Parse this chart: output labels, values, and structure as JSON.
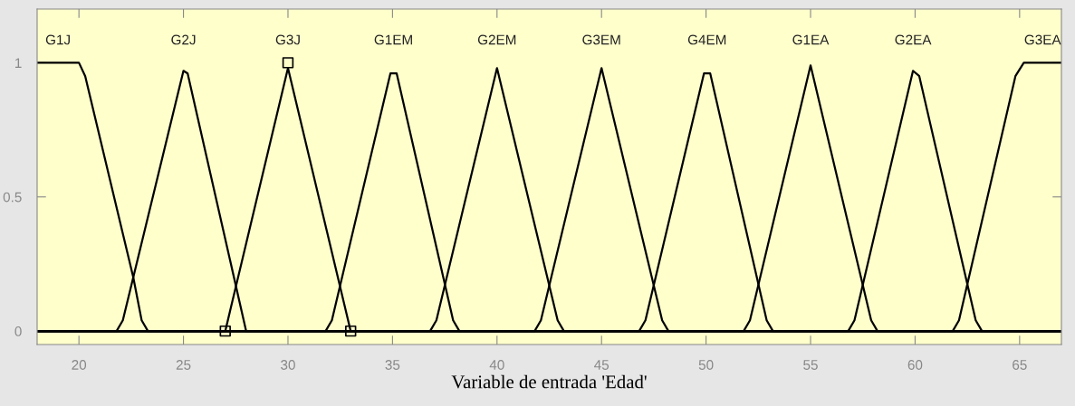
{
  "chart_data": {
    "type": "line",
    "xlabel": "Variable de entrada 'Edad'",
    "xlim": [
      18,
      67
    ],
    "ylim": [
      -0.05,
      1.2
    ],
    "xticks": [
      20,
      25,
      30,
      35,
      40,
      45,
      50,
      55,
      60,
      65
    ],
    "yticks": [
      0,
      0.5,
      1
    ],
    "grid": false,
    "legend": false,
    "line_style": "solid",
    "series": [
      {
        "name": "G1J",
        "color": "#000000",
        "x": [
          18,
          20,
          20.3,
          22.6,
          23,
          23.3,
          67
        ],
        "values": [
          1,
          1,
          0.95,
          0.2,
          0.04,
          0,
          0
        ]
      },
      {
        "name": "G2J",
        "color": "#000000",
        "x": [
          18,
          21.8,
          22.1,
          25,
          25.2,
          28,
          67
        ],
        "values": [
          0,
          0,
          0.04,
          0.97,
          0.96,
          0,
          0
        ]
      },
      {
        "name": "G3J",
        "color": "#000000",
        "x": [
          18,
          27,
          30,
          33,
          67
        ],
        "values": [
          0,
          0,
          0.98,
          0,
          0
        ]
      },
      {
        "name": "G1EM",
        "color": "#000000",
        "x": [
          18,
          31.8,
          32.1,
          34.9,
          35.2,
          37.9,
          38.2,
          67
        ],
        "values": [
          0,
          0,
          0.04,
          0.96,
          0.96,
          0.04,
          0,
          0
        ]
      },
      {
        "name": "G2EM",
        "color": "#000000",
        "x": [
          18,
          36.8,
          37.1,
          40,
          42.9,
          43.2,
          67
        ],
        "values": [
          0,
          0,
          0.04,
          0.98,
          0.04,
          0,
          0
        ]
      },
      {
        "name": "G3EM",
        "color": "#000000",
        "x": [
          18,
          41.8,
          42.1,
          45,
          47.9,
          48.2,
          67
        ],
        "values": [
          0,
          0,
          0.04,
          0.98,
          0.04,
          0,
          0
        ]
      },
      {
        "name": "G4EM",
        "color": "#000000",
        "x": [
          18,
          46.8,
          47.1,
          49.9,
          50.2,
          52.9,
          53.2,
          67
        ],
        "values": [
          0,
          0,
          0.04,
          0.96,
          0.96,
          0.04,
          0,
          0
        ]
      },
      {
        "name": "G1EA",
        "color": "#000000",
        "x": [
          18,
          51.8,
          52.1,
          55,
          57.9,
          58.2,
          67
        ],
        "values": [
          0,
          0,
          0.04,
          0.99,
          0.04,
          0,
          0
        ]
      },
      {
        "name": "G2EA",
        "color": "#000000",
        "x": [
          18,
          56.8,
          57.1,
          59.9,
          60.2,
          62.9,
          63.2,
          67
        ],
        "values": [
          0,
          0,
          0.04,
          0.97,
          0.95,
          0.04,
          0,
          0
        ]
      },
      {
        "name": "G3EA",
        "color": "#000000",
        "x": [
          18,
          61.8,
          62.1,
          64.8,
          65.2,
          67
        ],
        "values": [
          0,
          0,
          0.04,
          0.95,
          1,
          1
        ]
      },
      {
        "type": "scatter",
        "marker": "square",
        "color": "#000000",
        "x": [
          27,
          30,
          33
        ],
        "values": [
          0,
          1,
          0
        ]
      }
    ]
  }
}
